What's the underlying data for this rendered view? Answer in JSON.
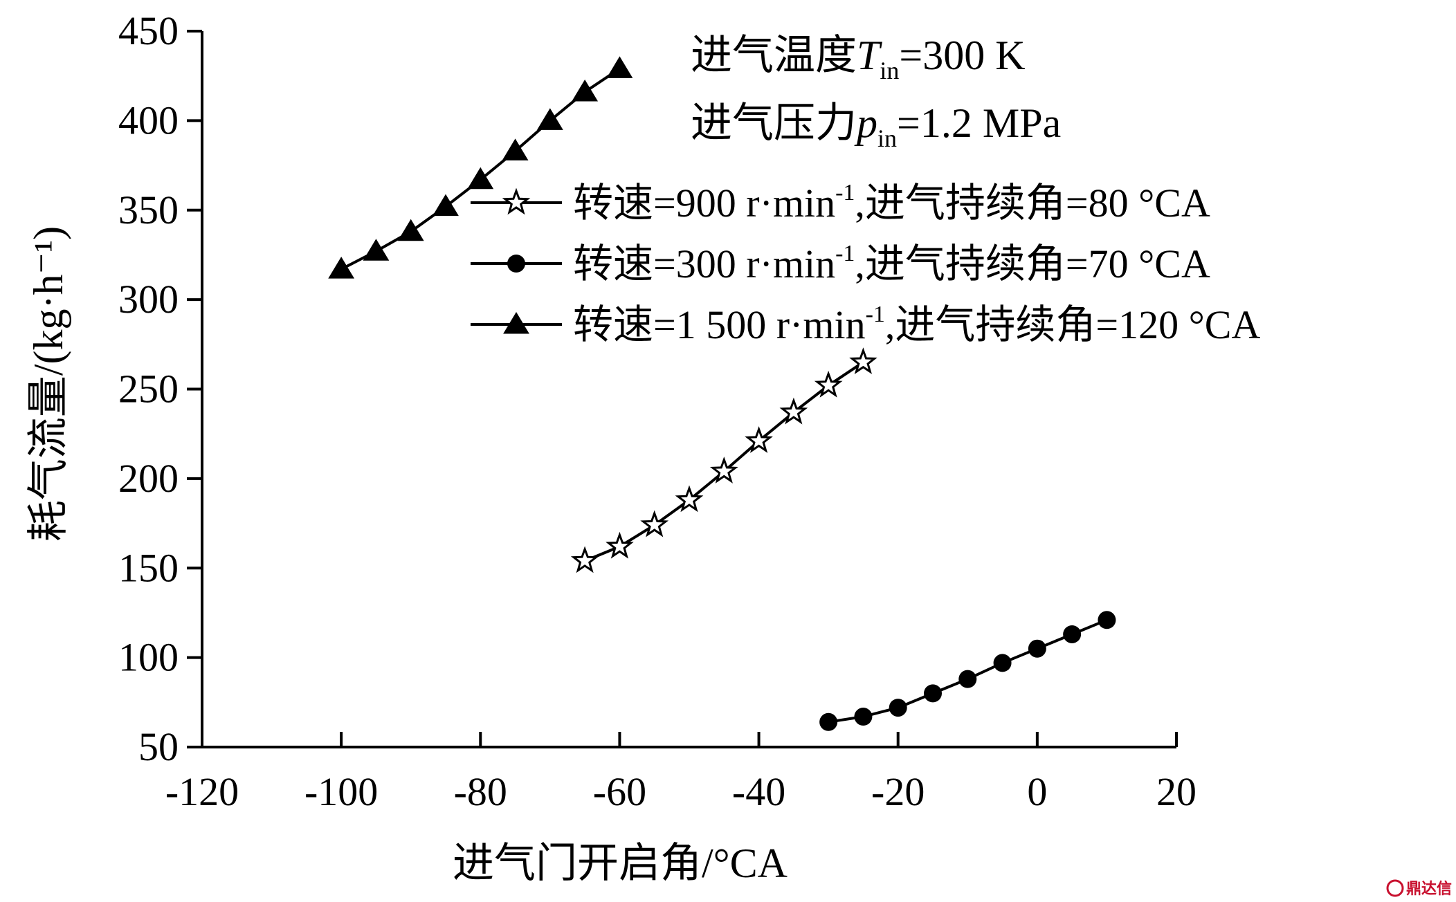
{
  "chart_data": {
    "type": "line",
    "title": "",
    "xlabel": "进气门开启角/°CA",
    "ylabel": "耗气流量/(kg·h⁻¹)",
    "xlim": [
      -120,
      20
    ],
    "ylim": [
      50,
      450
    ],
    "x_ticks": [
      "-120",
      "-100",
      "-80",
      "-60",
      "-40",
      "-20",
      "0",
      "20"
    ],
    "y_ticks": [
      "50",
      "100",
      "150",
      "200",
      "250",
      "300",
      "350",
      "400",
      "450"
    ],
    "annotations": [
      {
        "prefix": "进气温度",
        "symbol": "T",
        "sub": "in",
        "suffix": "=300 K"
      },
      {
        "prefix": "进气压力",
        "symbol": "p",
        "sub": "in",
        "suffix": "=1.2 MPa"
      }
    ],
    "legend_position": "upper-right",
    "series": [
      {
        "name": "转速=900 r·min⁻¹,进气持续角=80 °CA",
        "label_a": "转速=900 r·min",
        "label_sup": "-1",
        "label_b": ",进气持续角=80 °CA",
        "marker": "star",
        "x": [
          -65,
          -60,
          -55,
          -50,
          -45,
          -40,
          -35,
          -30,
          -25
        ],
        "y": [
          154,
          162,
          174,
          188,
          204,
          221,
          237,
          252,
          265
        ]
      },
      {
        "name": "转速=300 r·min⁻¹,进气持续角=70 °CA",
        "label_a": "转速=300 r·min",
        "label_sup": "-1",
        "label_b": ",进气持续角=70 °CA",
        "marker": "circle",
        "x": [
          -30,
          -25,
          -20,
          -15,
          -10,
          -5,
          0,
          5,
          10
        ],
        "y": [
          64,
          67,
          72,
          80,
          88,
          97,
          105,
          113,
          121
        ]
      },
      {
        "name": "转速=1 500 r·min⁻¹,进气持续角=120 °CA",
        "label_a": "转速=1 500 r·min",
        "label_sup": "-1",
        "label_b": ",进气持续角=120 °CA",
        "marker": "triangle",
        "x": [
          -100,
          -95,
          -90,
          -85,
          -80,
          -75,
          -70,
          -65,
          -60
        ],
        "y": [
          317,
          327,
          338,
          352,
          367,
          383,
          400,
          416,
          429
        ]
      }
    ]
  },
  "watermark": "鼎达信"
}
